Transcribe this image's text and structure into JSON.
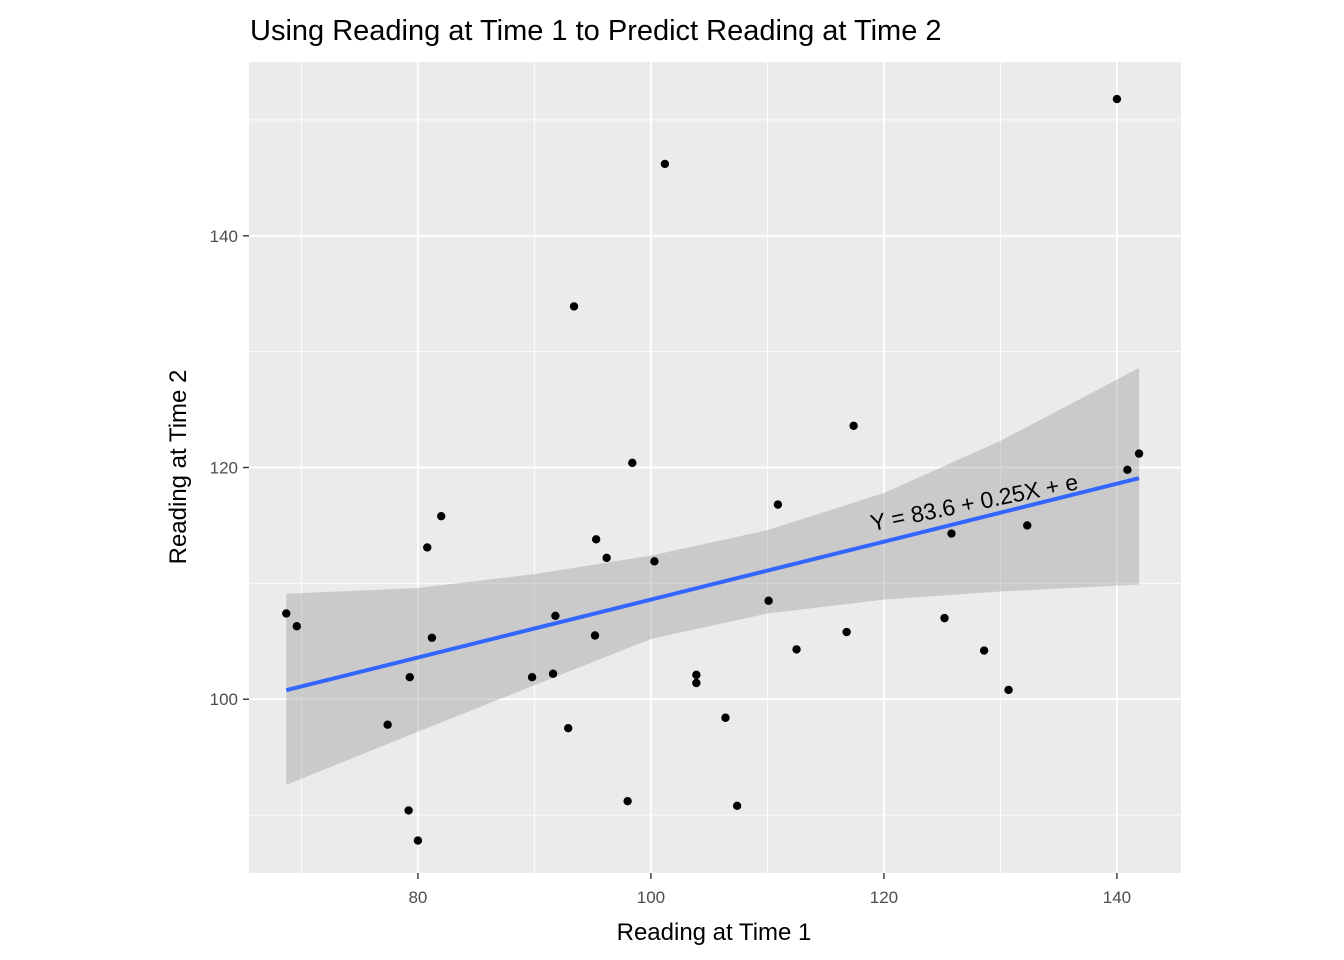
{
  "chart_data": {
    "type": "scatter",
    "title": "Using Reading at Time 1 to Predict Reading at Time 2",
    "xlabel": "Reading at Time 1",
    "ylabel": "Reading at Time 2",
    "xlim": [
      65.5,
      145.5
    ],
    "ylim": [
      85.0,
      155.0
    ],
    "x_ticks": [
      80,
      100,
      120,
      140
    ],
    "y_ticks": [
      100,
      120,
      140
    ],
    "x_tick_labels": [
      "80",
      "100",
      "120",
      "140"
    ],
    "y_tick_labels": [
      "100",
      "120",
      "140"
    ],
    "grid": true,
    "colors": {
      "panel_background": "#ebebeb",
      "grid_major": "#ffffff",
      "points": "#000000",
      "fit_line": "#3366ff",
      "confidence_band": "#999999"
    },
    "points": [
      {
        "x": 68.7,
        "y": 107.4
      },
      {
        "x": 69.6,
        "y": 106.3
      },
      {
        "x": 77.4,
        "y": 97.8
      },
      {
        "x": 79.2,
        "y": 90.4
      },
      {
        "x": 79.3,
        "y": 101.9
      },
      {
        "x": 80.0,
        "y": 87.8
      },
      {
        "x": 80.8,
        "y": 113.1
      },
      {
        "x": 81.2,
        "y": 105.3
      },
      {
        "x": 82.0,
        "y": 115.8
      },
      {
        "x": 89.8,
        "y": 101.9
      },
      {
        "x": 91.6,
        "y": 102.2
      },
      {
        "x": 91.8,
        "y": 107.2
      },
      {
        "x": 92.9,
        "y": 97.5
      },
      {
        "x": 93.4,
        "y": 133.9
      },
      {
        "x": 95.2,
        "y": 105.5
      },
      {
        "x": 95.3,
        "y": 113.8
      },
      {
        "x": 96.2,
        "y": 112.2
      },
      {
        "x": 98.0,
        "y": 91.2
      },
      {
        "x": 98.4,
        "y": 120.4
      },
      {
        "x": 100.3,
        "y": 111.9
      },
      {
        "x": 101.2,
        "y": 146.2
      },
      {
        "x": 103.9,
        "y": 101.4
      },
      {
        "x": 103.9,
        "y": 102.1
      },
      {
        "x": 106.4,
        "y": 98.4
      },
      {
        "x": 107.4,
        "y": 90.8
      },
      {
        "x": 110.1,
        "y": 108.5
      },
      {
        "x": 110.9,
        "y": 116.8
      },
      {
        "x": 112.5,
        "y": 104.3
      },
      {
        "x": 116.8,
        "y": 105.8
      },
      {
        "x": 117.4,
        "y": 123.6
      },
      {
        "x": 125.2,
        "y": 107.0
      },
      {
        "x": 125.8,
        "y": 114.3
      },
      {
        "x": 128.6,
        "y": 104.2
      },
      {
        "x": 130.7,
        "y": 100.8
      },
      {
        "x": 132.3,
        "y": 115.0
      },
      {
        "x": 140.0,
        "y": 151.8
      },
      {
        "x": 140.9,
        "y": 119.8
      },
      {
        "x": 141.9,
        "y": 121.2
      }
    ],
    "fit": {
      "x0": 68.7,
      "x1": 141.9,
      "intercept": 83.6,
      "slope": 0.25
    },
    "confidence_band": {
      "x": [
        68.7,
        80,
        90,
        100,
        110,
        120,
        130,
        141.9
      ],
      "upper": [
        109.1,
        109.6,
        110.8,
        112.4,
        114.6,
        117.8,
        122.3,
        128.6
      ],
      "lower": [
        92.6,
        97.2,
        101.2,
        105.2,
        107.4,
        108.6,
        109.3,
        109.9
      ]
    },
    "annotation": {
      "text": "Y = 83.6 + 0.25X + e",
      "x": 119,
      "y": 114.5,
      "angle_deg": -11.5
    }
  }
}
